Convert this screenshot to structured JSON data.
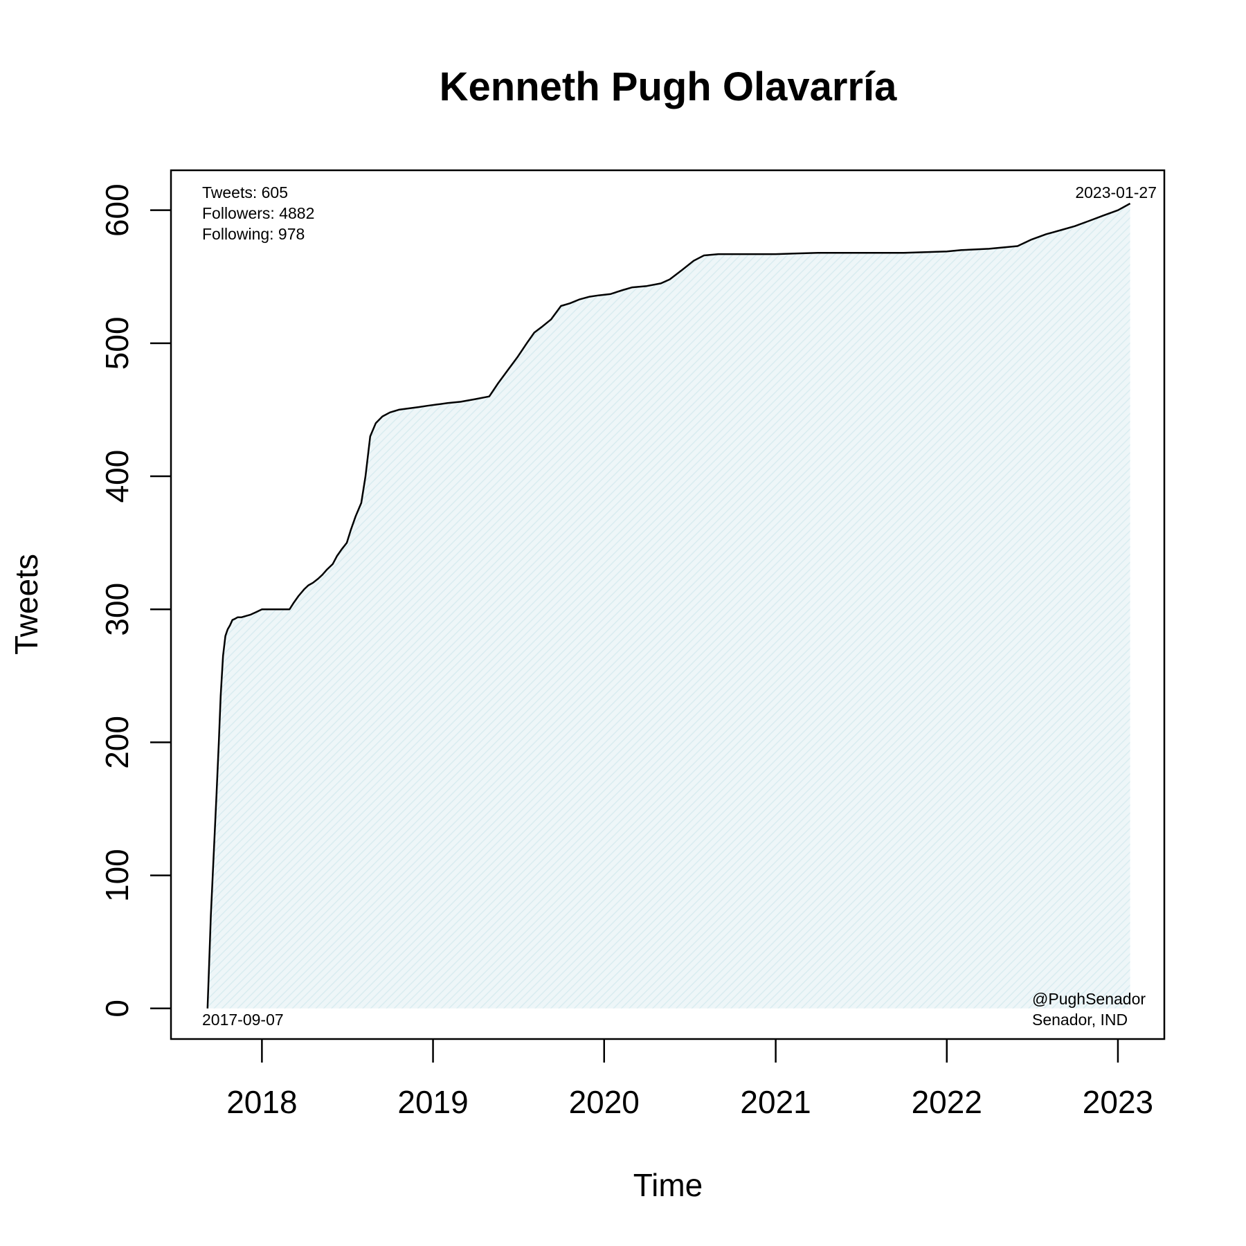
{
  "chart_data": {
    "type": "area",
    "title": "Kenneth Pugh Olavarría",
    "xlabel": "Time",
    "ylabel": "Tweets",
    "x_ticks": [
      {
        "date": "2018-01-01",
        "label": "2018"
      },
      {
        "date": "2019-01-01",
        "label": "2019"
      },
      {
        "date": "2020-01-01",
        "label": "2020"
      },
      {
        "date": "2021-01-01",
        "label": "2021"
      },
      {
        "date": "2022-01-01",
        "label": "2022"
      },
      {
        "date": "2023-01-01",
        "label": "2023"
      }
    ],
    "y_ticks": [
      0,
      100,
      200,
      300,
      400,
      500,
      600
    ],
    "xlim": [
      "2017-06-21",
      "2023-04-10"
    ],
    "ylim": [
      -23,
      630
    ],
    "grid": false,
    "fill_color": "#e6f2f5",
    "line_color": "#000000",
    "series": [
      {
        "x": [
          "2017-09-07",
          "2017-09-10",
          "2017-09-14",
          "2017-09-18",
          "2017-09-22",
          "2017-09-26",
          "2017-10-01",
          "2017-10-05",
          "2017-10-10",
          "2017-10-15",
          "2017-10-20",
          "2017-10-25",
          "2017-10-30",
          "2017-11-05",
          "2017-11-10",
          "2017-11-18",
          "2017-11-28",
          "2017-12-08",
          "2017-12-20",
          "2018-01-01",
          "2018-02-01",
          "2018-03-01",
          "2018-03-10",
          "2018-03-20",
          "2018-04-01",
          "2018-04-10",
          "2018-04-20",
          "2018-05-01",
          "2018-05-10",
          "2018-05-20",
          "2018-06-01",
          "2018-06-10",
          "2018-06-20",
          "2018-07-01",
          "2018-07-10",
          "2018-07-20",
          "2018-08-01",
          "2018-08-10",
          "2018-08-20",
          "2018-09-01",
          "2018-09-15",
          "2018-10-01",
          "2018-10-20",
          "2018-11-10",
          "2018-12-01",
          "2018-12-20",
          "2019-01-10",
          "2019-02-01",
          "2019-03-01",
          "2019-04-01",
          "2019-05-01",
          "2019-05-20",
          "2019-06-10",
          "2019-07-01",
          "2019-07-20",
          "2019-08-05",
          "2019-08-20",
          "2019-09-10",
          "2019-10-01",
          "2019-10-20",
          "2019-11-10",
          "2019-12-01",
          "2019-12-20",
          "2020-01-15",
          "2020-02-10",
          "2020-03-01",
          "2020-04-01",
          "2020-05-01",
          "2020-05-20",
          "2020-06-15",
          "2020-07-10",
          "2020-08-01",
          "2020-09-01",
          "2020-10-01",
          "2021-01-01",
          "2021-04-01",
          "2021-07-01",
          "2021-10-01",
          "2022-01-01",
          "2022-02-01",
          "2022-04-01",
          "2022-06-01",
          "2022-07-01",
          "2022-08-01",
          "2022-09-01",
          "2022-10-01",
          "2022-11-01",
          "2022-12-01",
          "2023-01-01",
          "2023-01-27"
        ],
        "y": [
          0,
          30,
          70,
          100,
          130,
          160,
          200,
          235,
          265,
          280,
          285,
          288,
          292,
          293,
          294,
          294,
          295,
          296,
          298,
          300,
          300,
          300,
          305,
          310,
          315,
          318,
          320,
          323,
          326,
          330,
          334,
          340,
          345,
          350,
          360,
          370,
          380,
          400,
          430,
          440,
          445,
          448,
          450,
          451,
          452,
          453,
          454,
          455,
          456,
          458,
          460,
          470,
          480,
          490,
          500,
          508,
          512,
          518,
          528,
          530,
          533,
          535,
          536,
          537,
          540,
          542,
          543,
          545,
          548,
          555,
          562,
          566,
          567,
          567,
          567,
          568,
          568,
          568,
          569,
          570,
          571,
          573,
          578,
          582,
          585,
          588,
          592,
          596,
          600,
          605
        ]
      }
    ],
    "annotations": {
      "stats": [
        "Tweets: 605",
        "Followers: 4882",
        "Following: 978"
      ],
      "start_date": "2017-09-07",
      "end_date": "2023-01-27",
      "handle": "@PughSenador",
      "role": "Senador, IND"
    }
  }
}
